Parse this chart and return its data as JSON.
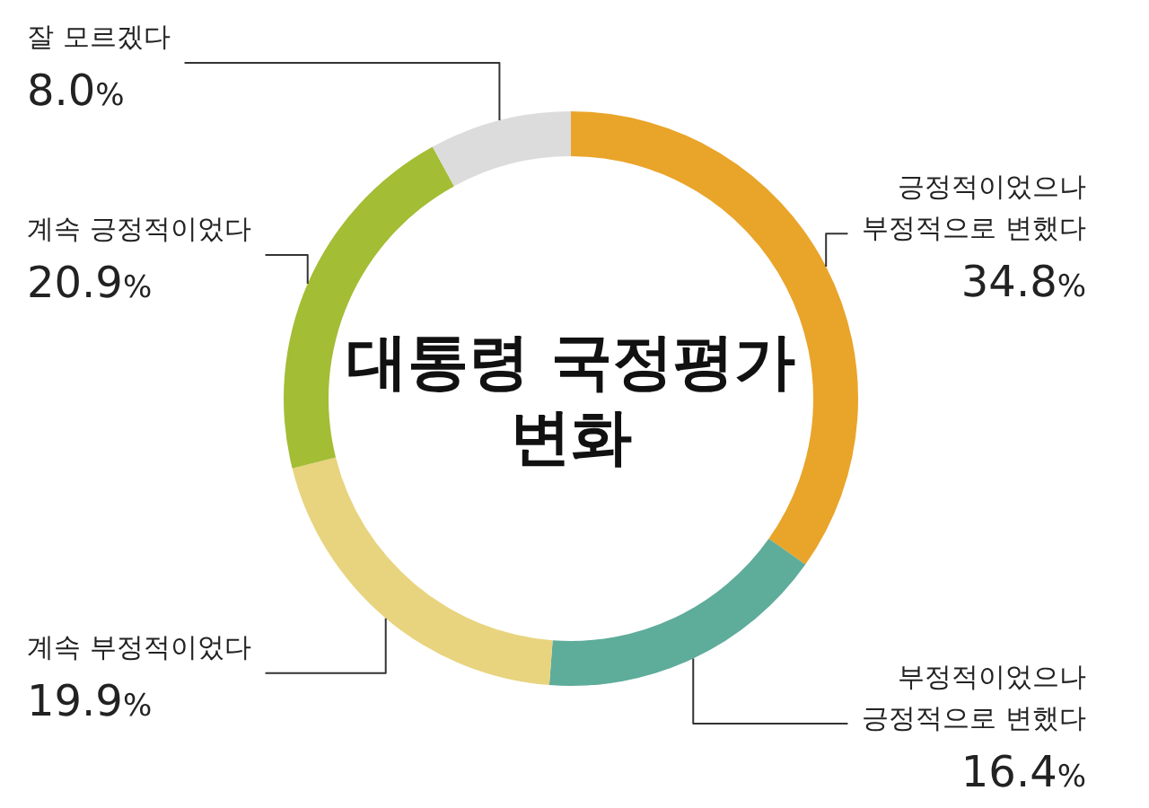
{
  "chart_data": {
    "type": "donut",
    "title": "대통령 국정평가 변화",
    "categories": [
      "긍정적이었으나 부정적으로 변했다",
      "부정적이었으나 긍정적으로 변했다",
      "계속 부정적이었다",
      "계속 긍정적이었다",
      "잘 모르겠다"
    ],
    "values": [
      34.8,
      16.4,
      19.9,
      20.9,
      8.0
    ],
    "value_labels": [
      "34.8%",
      "16.4%",
      "19.9%",
      "20.9%",
      "8.0%"
    ],
    "colors": [
      "#e9a42a",
      "#5eac9a",
      "#e8d47e",
      "#a3bd35",
      "#dcdcdc"
    ]
  }
}
